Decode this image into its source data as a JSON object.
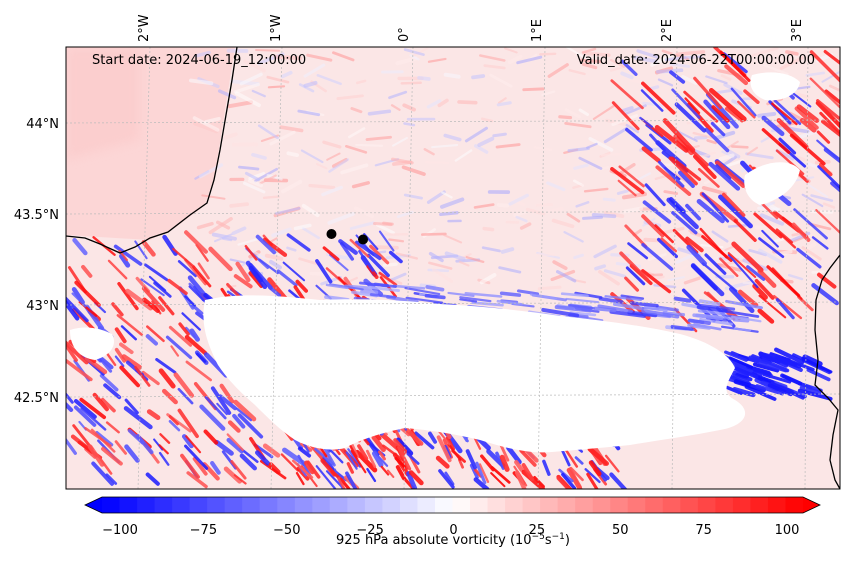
{
  "map": {
    "start_date": "Start date: 2024-06-19_12:00:00",
    "valid_date": "Valid_date: 2024-06-22T00:00:00.00",
    "lon_labels": [
      "2°W",
      "1°W",
      "0°",
      "1°E",
      "2°E",
      "3°E"
    ],
    "lat_labels": [
      "44°N",
      "43.5°N",
      "43°N",
      "42.5°N"
    ],
    "markers": [
      {
        "name": "point-a",
        "lon": -0.62,
        "lat": 43.39
      },
      {
        "name": "point-b",
        "lon": -0.38,
        "lat": 43.36
      }
    ]
  },
  "colorbar": {
    "label_main": "925 hPa absolute vorticity (10",
    "label_exp1": "−5",
    "label_unit": "s",
    "label_exp2": "−1",
    "label_close": ")",
    "ticks": [
      "−100",
      "−75",
      "−50",
      "−25",
      "0",
      "25",
      "50",
      "75",
      "100"
    ],
    "tick_values": [
      -100,
      -75,
      -50,
      -25,
      0,
      25,
      50,
      75,
      100
    ],
    "range": [
      -100,
      100
    ],
    "levels": 40,
    "colors": {
      "low": "#0000ff",
      "mid": "#ffffff",
      "high": "#ff0000"
    }
  },
  "colors": {
    "coast": "#000000",
    "grid": "#bbbbbb",
    "marker": "#000000",
    "masked": "#ffffff",
    "background_pink": "#fde1e1"
  }
}
